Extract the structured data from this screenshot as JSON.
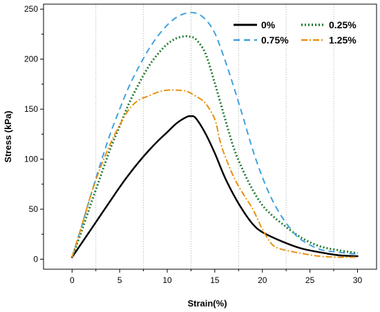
{
  "chart_data": {
    "type": "line",
    "xlabel": "Strain(%)",
    "ylabel": "Stress (kPa)",
    "xlim": [
      -3,
      32
    ],
    "ylim": [
      -10,
      255
    ],
    "xticks": [
      0,
      5,
      10,
      15,
      20,
      25,
      30
    ],
    "yticks": [
      0,
      50,
      100,
      150,
      200,
      250
    ],
    "grid": "vertical dotted at 2.5, 7.5, 12.5, 17.5, 22.5, 27.5",
    "minor_grid_x": [
      2.5,
      7.5,
      12.5,
      17.5,
      22.5,
      27.5
    ],
    "legend_position": "top-right",
    "series": [
      {
        "name": "0%",
        "color": "#000000",
        "style": "solid",
        "x": [
          0,
          1,
          2,
          3,
          4,
          5,
          6,
          7,
          8,
          9,
          10,
          11,
          12,
          12.5,
          13,
          14,
          15,
          16,
          17,
          18,
          19,
          20,
          22,
          24,
          26,
          28,
          30
        ],
        "y": [
          2,
          16,
          30,
          44,
          58,
          72,
          85,
          97,
          108,
          118,
          127,
          136,
          142,
          143,
          141,
          126,
          106,
          83,
          64,
          48,
          35,
          27,
          18,
          11,
          7,
          4,
          3
        ]
      },
      {
        "name": "0.25%",
        "color": "#1e7a2e",
        "style": "dotted",
        "x": [
          0,
          1,
          2,
          3,
          4,
          5,
          6,
          7,
          8,
          9,
          10,
          11,
          12,
          12.5,
          13,
          14,
          15,
          16,
          17,
          18,
          19,
          20,
          21,
          22,
          24,
          26,
          28,
          30
        ],
        "y": [
          2,
          28,
          56,
          83,
          110,
          133,
          156,
          175,
          192,
          205,
          215,
          221,
          223,
          222,
          220,
          206,
          176,
          143,
          111,
          88,
          69,
          54,
          44,
          36,
          22,
          13,
          9,
          6
        ]
      },
      {
        "name": "0.75%",
        "color": "#3ea1de",
        "style": "dashed",
        "x": [
          0,
          1,
          2,
          3,
          4,
          5,
          6,
          7,
          8,
          9,
          10,
          11,
          12,
          13,
          14,
          15,
          16,
          17,
          18,
          19,
          20,
          21,
          22,
          23,
          24,
          26,
          28,
          30
        ],
        "y": [
          2,
          33,
          65,
          96,
          125,
          150,
          173,
          192,
          209,
          223,
          234,
          242,
          246,
          246,
          240,
          226,
          201,
          172,
          141,
          109,
          82,
          60,
          43,
          30,
          20,
          10,
          7,
          5
        ]
      },
      {
        "name": "1.25%",
        "color": "#e8900e",
        "style": "dashdot",
        "x": [
          0,
          1,
          2,
          3,
          4,
          5,
          6,
          7,
          8,
          9,
          10,
          11,
          12,
          13,
          14,
          15,
          15.5,
          16,
          17,
          18,
          19,
          20,
          21,
          22,
          24,
          26,
          28,
          30
        ],
        "y": [
          2,
          33,
          65,
          92,
          115,
          134,
          150,
          159,
          163,
          167,
          169,
          169,
          168,
          163,
          156,
          140,
          120,
          105,
          82,
          65,
          50,
          30,
          15,
          10,
          6,
          3,
          2,
          2
        ]
      }
    ]
  },
  "colors": {
    "grid": "#b0b0b0",
    "frame": "#000000"
  }
}
